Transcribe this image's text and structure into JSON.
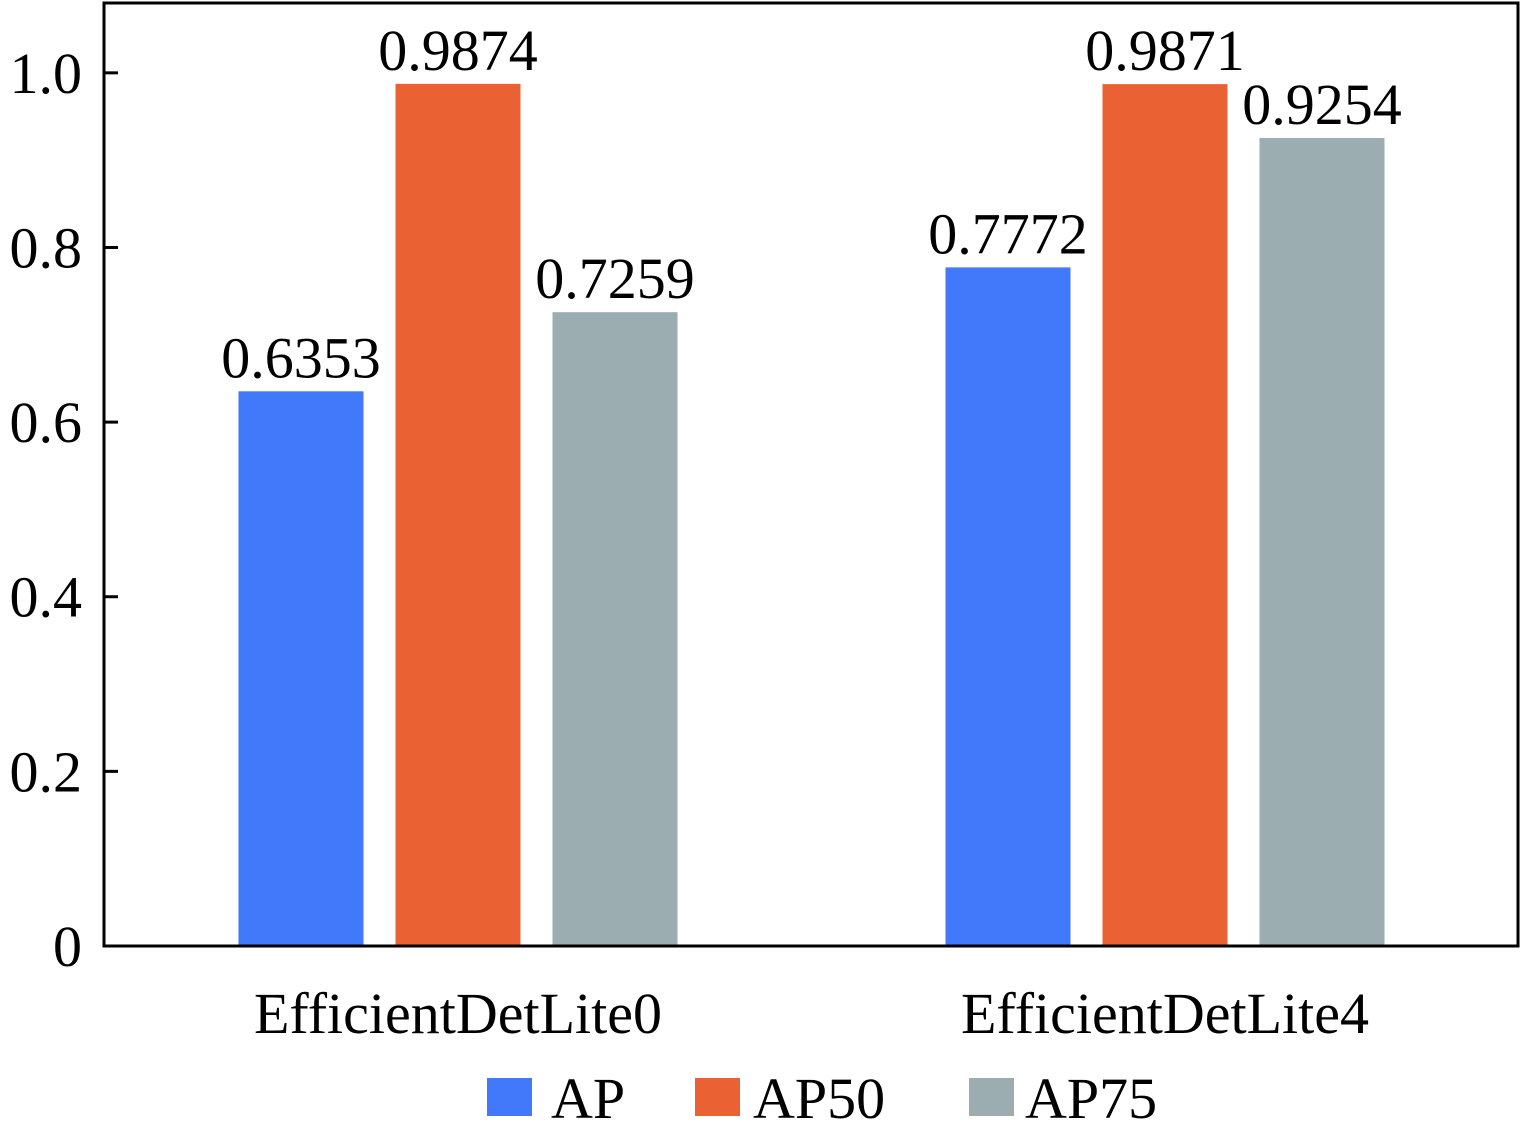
{
  "chart_data": {
    "type": "bar",
    "categories": [
      "EfficientDetLite0",
      "EfficientDetLite4"
    ],
    "series": [
      {
        "name": "AP",
        "color": "#4279FB",
        "values": [
          0.6353,
          0.7772
        ],
        "labels": [
          "0.6353",
          "0.7772"
        ]
      },
      {
        "name": "AP50",
        "color": "#EA6233",
        "values": [
          0.9874,
          0.9871
        ],
        "labels": [
          "0.9874",
          "0.9871"
        ]
      },
      {
        "name": "AP75",
        "color": "#9BADB1",
        "values": [
          0.7259,
          0.9254
        ],
        "labels": [
          "0.7259",
          "0.9254"
        ]
      }
    ],
    "yticks": [
      0,
      0.2,
      0.4,
      0.6,
      0.8,
      1.0
    ],
    "ytick_labels": [
      "0",
      "0.2",
      "0.4",
      "0.6",
      "0.8",
      "1.0"
    ],
    "ylim": [
      0,
      1.08
    ],
    "grid": false,
    "legend_position": "bottom"
  }
}
